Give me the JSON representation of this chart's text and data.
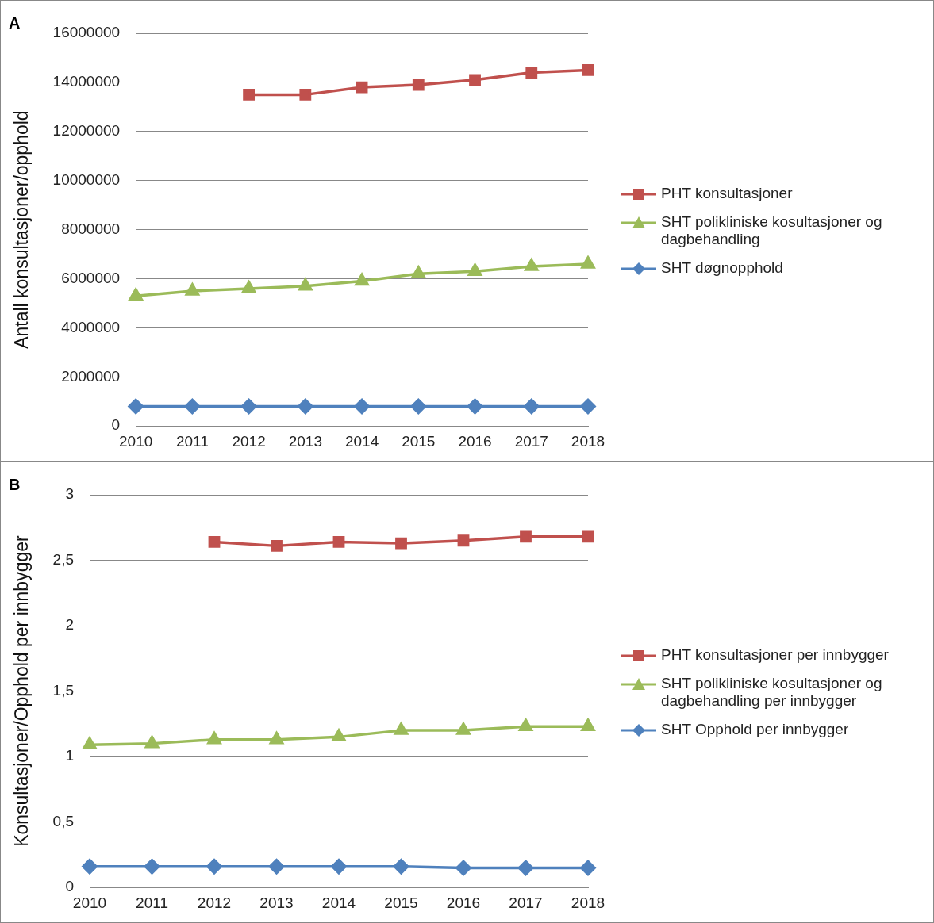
{
  "chart_data": [
    {
      "type": "line",
      "title": "A",
      "ylabel": "Antall konsultasjoner/opphold",
      "categories": [
        "2010",
        "2011",
        "2012",
        "2013",
        "2014",
        "2015",
        "2016",
        "2017",
        "2018"
      ],
      "ylim": [
        0,
        16000000
      ],
      "yticks": [
        0,
        2000000,
        4000000,
        6000000,
        8000000,
        10000000,
        12000000,
        14000000,
        16000000
      ],
      "grid": "y",
      "legend": "right",
      "series": [
        {
          "name": "PHT konsultasjoner",
          "color": "#c0504d",
          "marker": "square",
          "values": [
            null,
            null,
            13500000,
            13500000,
            13800000,
            13900000,
            14100000,
            14400000,
            14500000
          ]
        },
        {
          "name": "SHT polikliniske kosultasjoner og dagbehandling",
          "color": "#9bbb59",
          "marker": "triangle",
          "values": [
            5300000,
            5500000,
            5600000,
            5700000,
            5900000,
            6200000,
            6300000,
            6500000,
            6600000
          ]
        },
        {
          "name": "SHT døgnopphold",
          "color": "#4f81bd",
          "marker": "diamond",
          "values": [
            800000,
            800000,
            800000,
            800000,
            800000,
            800000,
            800000,
            800000,
            800000
          ]
        }
      ]
    },
    {
      "type": "line",
      "title": "B",
      "ylabel": "Konsultasjoner/Opphold per innbygger",
      "categories": [
        "2010",
        "2011",
        "2012",
        "2013",
        "2014",
        "2015",
        "2016",
        "2017",
        "2018"
      ],
      "ylim": [
        0,
        3
      ],
      "yticks": [
        0,
        {
          "value": 0.5,
          "label": "0,5"
        },
        1,
        {
          "value": 1.5,
          "label": "1,5"
        },
        2,
        {
          "value": 2.5,
          "label": "2,5"
        },
        3
      ],
      "grid": "y",
      "legend": "right",
      "series": [
        {
          "name": "PHT konsultasjoner per innbygger",
          "color": "#c0504d",
          "marker": "square",
          "values": [
            null,
            null,
            2.64,
            2.61,
            2.64,
            2.63,
            2.65,
            2.68,
            2.68
          ]
        },
        {
          "name": "SHT polikliniske kosultasjoner og dagbehandling per innbygger",
          "color": "#9bbb59",
          "marker": "triangle",
          "values": [
            1.09,
            1.1,
            1.13,
            1.13,
            1.15,
            1.2,
            1.2,
            1.23,
            1.23
          ]
        },
        {
          "name": "SHT Opphold per innbygger",
          "color": "#4f81bd",
          "marker": "diamond",
          "values": [
            0.16,
            0.16,
            0.16,
            0.16,
            0.16,
            0.16,
            0.15,
            0.15,
            0.15
          ]
        }
      ]
    }
  ]
}
